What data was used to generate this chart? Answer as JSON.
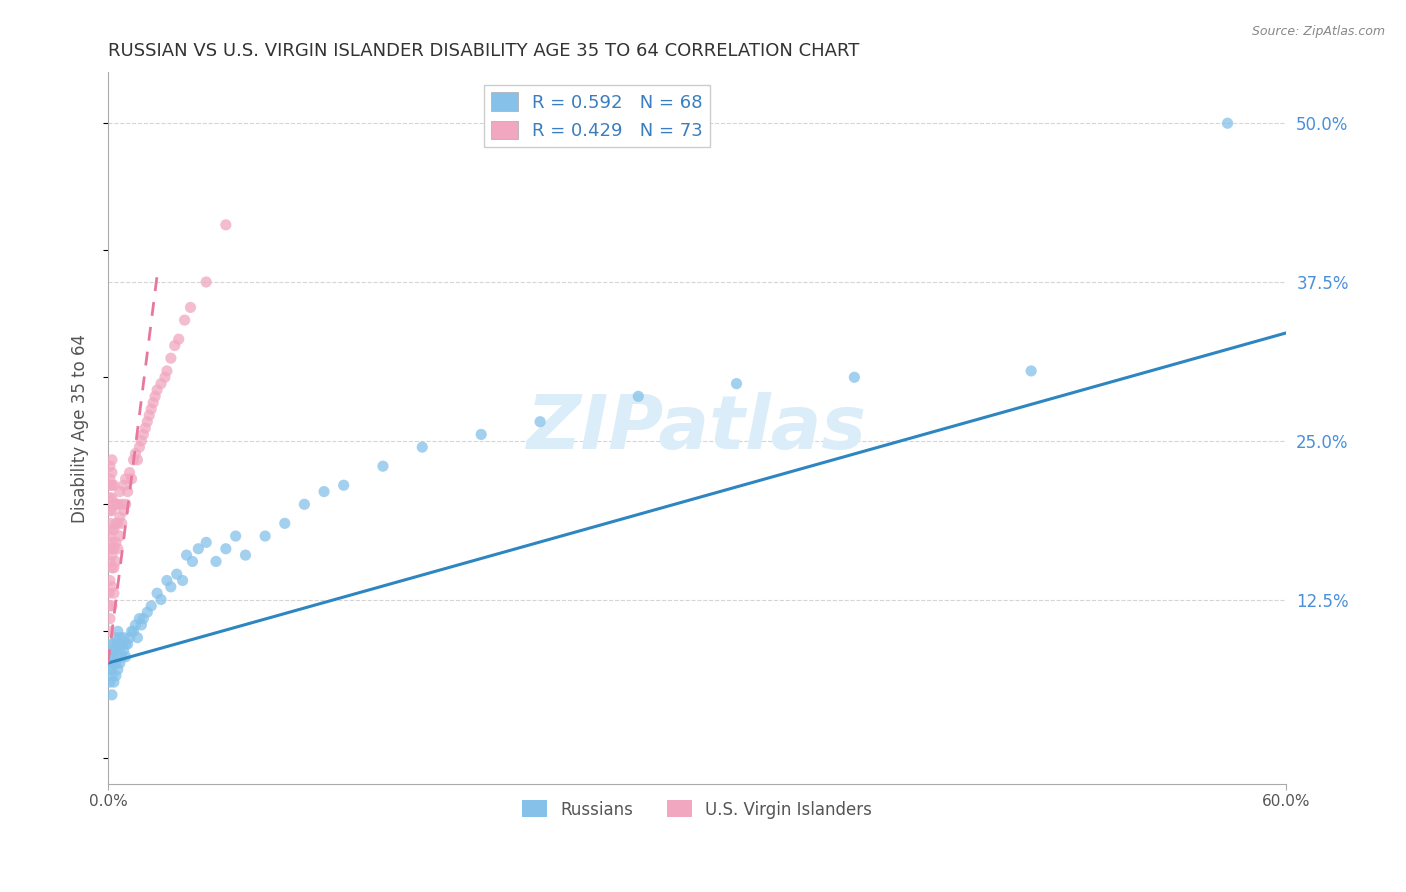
{
  "title": "RUSSIAN VS U.S. VIRGIN ISLANDER DISABILITY AGE 35 TO 64 CORRELATION CHART",
  "source": "Source: ZipAtlas.com",
  "ylabel": "Disability Age 35 to 64",
  "xlim": [
    0.0,
    0.6
  ],
  "ylim": [
    -0.02,
    0.54
  ],
  "yticks_right": [
    0.125,
    0.25,
    0.375,
    0.5
  ],
  "yticklabels_right": [
    "12.5%",
    "25.0%",
    "37.5%",
    "50.0%"
  ],
  "legend_blue_r": "R = 0.592",
  "legend_blue_n": "N = 68",
  "legend_pink_r": "R = 0.429",
  "legend_pink_n": "N = 73",
  "blue_color": "#85c1e9",
  "pink_color": "#f1a7c0",
  "blue_line_color": "#2e86c1",
  "pink_line_color": "#e8789a",
  "grid_color": "#d5d5d5",
  "title_color": "#333333",
  "axis_label_color": "#555555",
  "right_tick_color": "#4a90d9",
  "watermark_color": "#daedf8",
  "blue_line_x0": 0.0,
  "blue_line_y0": 0.075,
  "blue_line_x1": 0.6,
  "blue_line_y1": 0.335,
  "pink_line_x0": 0.0,
  "pink_line_y0": 0.075,
  "pink_line_x1": 0.025,
  "pink_line_y1": 0.38,
  "russians_x": [
    0.001,
    0.001,
    0.001,
    0.002,
    0.002,
    0.002,
    0.002,
    0.002,
    0.003,
    0.003,
    0.003,
    0.003,
    0.004,
    0.004,
    0.004,
    0.004,
    0.005,
    0.005,
    0.005,
    0.005,
    0.006,
    0.006,
    0.006,
    0.007,
    0.007,
    0.008,
    0.008,
    0.009,
    0.009,
    0.01,
    0.011,
    0.012,
    0.013,
    0.014,
    0.015,
    0.016,
    0.017,
    0.018,
    0.02,
    0.022,
    0.025,
    0.027,
    0.03,
    0.032,
    0.035,
    0.038,
    0.04,
    0.043,
    0.046,
    0.05,
    0.055,
    0.06,
    0.065,
    0.07,
    0.08,
    0.09,
    0.1,
    0.11,
    0.12,
    0.14,
    0.16,
    0.19,
    0.22,
    0.27,
    0.32,
    0.38,
    0.47,
    0.57
  ],
  "russians_y": [
    0.06,
    0.07,
    0.08,
    0.05,
    0.065,
    0.07,
    0.08,
    0.09,
    0.06,
    0.075,
    0.085,
    0.09,
    0.065,
    0.075,
    0.085,
    0.095,
    0.07,
    0.08,
    0.09,
    0.1,
    0.075,
    0.085,
    0.095,
    0.08,
    0.09,
    0.085,
    0.095,
    0.08,
    0.09,
    0.09,
    0.095,
    0.1,
    0.1,
    0.105,
    0.095,
    0.11,
    0.105,
    0.11,
    0.115,
    0.12,
    0.13,
    0.125,
    0.14,
    0.135,
    0.145,
    0.14,
    0.16,
    0.155,
    0.165,
    0.17,
    0.155,
    0.165,
    0.175,
    0.16,
    0.175,
    0.185,
    0.2,
    0.21,
    0.215,
    0.23,
    0.245,
    0.255,
    0.265,
    0.285,
    0.295,
    0.3,
    0.305,
    0.5
  ],
  "virgins_x": [
    0.0005,
    0.0005,
    0.001,
    0.001,
    0.001,
    0.001,
    0.001,
    0.001,
    0.001,
    0.001,
    0.001,
    0.001,
    0.001,
    0.001,
    0.002,
    0.002,
    0.002,
    0.002,
    0.002,
    0.002,
    0.002,
    0.002,
    0.002,
    0.002,
    0.002,
    0.003,
    0.003,
    0.003,
    0.003,
    0.003,
    0.003,
    0.004,
    0.004,
    0.004,
    0.004,
    0.005,
    0.005,
    0.005,
    0.006,
    0.006,
    0.006,
    0.007,
    0.007,
    0.008,
    0.008,
    0.009,
    0.009,
    0.01,
    0.011,
    0.012,
    0.013,
    0.014,
    0.015,
    0.016,
    0.017,
    0.018,
    0.019,
    0.02,
    0.021,
    0.022,
    0.023,
    0.024,
    0.025,
    0.027,
    0.029,
    0.03,
    0.032,
    0.034,
    0.036,
    0.039,
    0.042,
    0.05,
    0.06
  ],
  "virgins_y": [
    0.1,
    0.13,
    0.11,
    0.12,
    0.14,
    0.155,
    0.165,
    0.175,
    0.185,
    0.195,
    0.205,
    0.215,
    0.22,
    0.23,
    0.12,
    0.135,
    0.15,
    0.16,
    0.17,
    0.18,
    0.195,
    0.205,
    0.215,
    0.225,
    0.235,
    0.13,
    0.15,
    0.165,
    0.18,
    0.2,
    0.215,
    0.155,
    0.17,
    0.185,
    0.2,
    0.165,
    0.185,
    0.2,
    0.175,
    0.19,
    0.21,
    0.185,
    0.2,
    0.195,
    0.215,
    0.2,
    0.22,
    0.21,
    0.225,
    0.22,
    0.235,
    0.24,
    0.235,
    0.245,
    0.25,
    0.255,
    0.26,
    0.265,
    0.27,
    0.275,
    0.28,
    0.285,
    0.29,
    0.295,
    0.3,
    0.305,
    0.315,
    0.325,
    0.33,
    0.345,
    0.355,
    0.375,
    0.42
  ]
}
